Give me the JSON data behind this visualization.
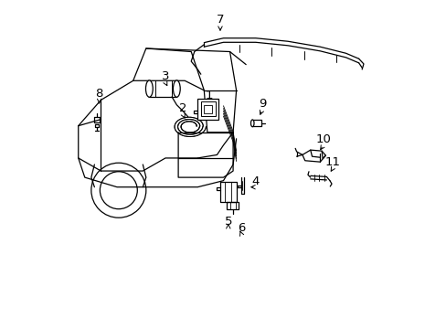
{
  "bg_color": "#ffffff",
  "line_color": "#000000",
  "figsize": [
    4.89,
    3.6
  ],
  "dpi": 100,
  "label_arrows": {
    "1": {
      "lp": [
        0.455,
        0.695
      ],
      "ap": [
        0.445,
        0.67
      ]
    },
    "2": {
      "lp": [
        0.375,
        0.655
      ],
      "ap": [
        0.385,
        0.635
      ]
    },
    "3": {
      "lp": [
        0.32,
        0.755
      ],
      "ap": [
        0.33,
        0.735
      ]
    },
    "4": {
      "lp": [
        0.6,
        0.43
      ],
      "ap": [
        0.575,
        0.43
      ]
    },
    "5": {
      "lp": [
        0.515,
        0.305
      ],
      "ap": [
        0.515,
        0.325
      ]
    },
    "6": {
      "lp": [
        0.555,
        0.285
      ],
      "ap": [
        0.548,
        0.302
      ]
    },
    "7": {
      "lp": [
        0.49,
        0.93
      ],
      "ap": [
        0.49,
        0.905
      ]
    },
    "8": {
      "lp": [
        0.115,
        0.7
      ],
      "ap": [
        0.115,
        0.68
      ]
    },
    "9": {
      "lp": [
        0.62,
        0.67
      ],
      "ap": [
        0.61,
        0.645
      ]
    },
    "10": {
      "lp": [
        0.81,
        0.56
      ],
      "ap": [
        0.795,
        0.537
      ]
    },
    "11": {
      "lp": [
        0.84,
        0.49
      ],
      "ap": [
        0.828,
        0.47
      ]
    }
  }
}
